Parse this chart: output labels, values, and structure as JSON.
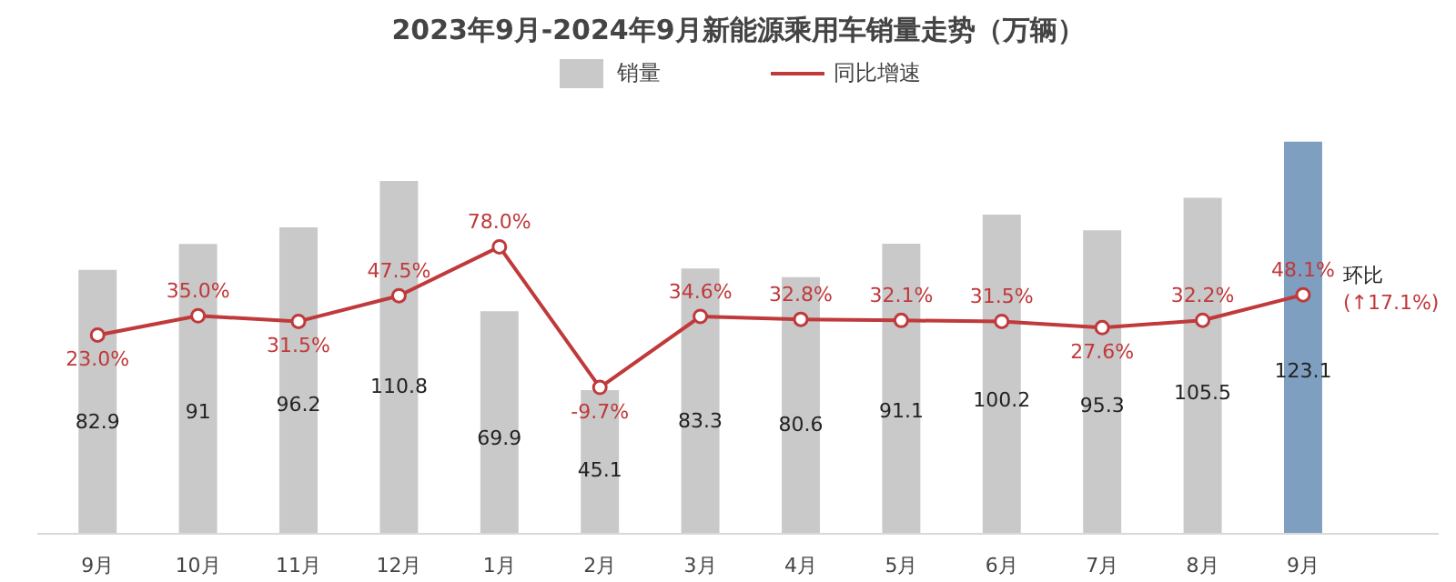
{
  "chart_data": {
    "type": "bar",
    "title": "2023年9月-2024年9月新能源乘用车销量走势（万辆）",
    "categories": [
      "9月",
      "10月",
      "11月",
      "12月",
      "1月",
      "2月",
      "3月",
      "4月",
      "5月",
      "6月",
      "7月",
      "8月",
      "9月"
    ],
    "series": [
      {
        "name": "销量",
        "colors": [
          "#c9c9c9",
          "#c9c9c9",
          "#c9c9c9",
          "#c9c9c9",
          "#c9c9c9",
          "#c9c9c9",
          "#c9c9c9",
          "#c9c9c9",
          "#c9c9c9",
          "#c9c9c9",
          "#c9c9c9",
          "#c9c9c9",
          "#7f9fc0"
        ],
        "values": [
          82.9,
          91,
          96.2,
          110.8,
          69.9,
          45.1,
          83.3,
          80.6,
          91.1,
          100.2,
          95.3,
          105.5,
          123.1
        ],
        "value_labels": [
          "82.9",
          "91",
          "96.2",
          "110.8",
          "69.9",
          "45.1",
          "83.3",
          "80.6",
          "91.1",
          "100.2",
          "95.3",
          "105.5",
          "123.1"
        ]
      },
      {
        "name": "同比增速",
        "type": "line",
        "axis": "y2",
        "color": "#c0393b",
        "values": [
          23.0,
          35.0,
          31.5,
          47.5,
          78.0,
          -9.7,
          34.6,
          32.8,
          32.1,
          31.5,
          27.6,
          32.2,
          48.1
        ],
        "value_labels": [
          "23.0%",
          "35.0%",
          "31.5%",
          "47.5%",
          "78.0%",
          "-9.7%",
          "34.6%",
          "32.8%",
          "32.1%",
          "31.5%",
          "27.6%",
          "32.2%",
          "48.1%"
        ]
      }
    ],
    "annotations": [
      "环比",
      "(↑17.1%)"
    ],
    "marker": "circle",
    "line_style": "solid",
    "legend": "top",
    "grid": false
  }
}
